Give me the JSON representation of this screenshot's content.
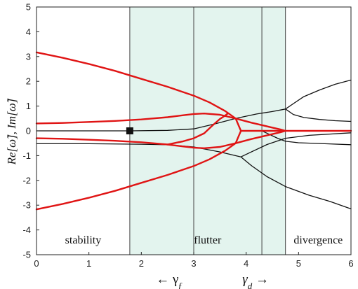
{
  "chart_data": {
    "type": "line",
    "xlim": [
      0,
      6
    ],
    "ylim": [
      -5,
      5
    ],
    "x_ticks": [
      0,
      1,
      2,
      3,
      4,
      5,
      6
    ],
    "y_ticks": [
      -5,
      -4,
      -3,
      -2,
      -1,
      0,
      1,
      2,
      3,
      4,
      5
    ],
    "ylabel": "Re[ω̃], Im[ω̃]",
    "x_annotations": [
      {
        "label": "← γf",
        "base": "← γ",
        "sub": "f"
      },
      {
        "label": "γd →",
        "base": "γ",
        "sub": "d",
        "suffix": " →"
      }
    ],
    "regions": [
      {
        "label": "stability",
        "x": [
          0,
          1.78
        ],
        "fill": "#ffffff"
      },
      {
        "label": "flutter",
        "x": [
          1.78,
          4.75
        ],
        "fill": "#e3f4ee"
      },
      {
        "label": "divergence",
        "x": [
          4.75,
          6
        ],
        "fill": "#ffffff"
      }
    ],
    "boundaries": [
      1.78,
      3.0,
      4.3,
      4.75
    ],
    "marker": {
      "x": 1.78,
      "y": 0,
      "shape": "square"
    },
    "colors": {
      "real_part": "#e01414",
      "imag_part": "#111111",
      "region_fill": "#e3f4ee"
    },
    "series": [
      {
        "part": "real",
        "color": "#e01414",
        "points": [
          [
            0,
            3.17
          ],
          [
            0.5,
            2.95
          ],
          [
            1.0,
            2.7
          ],
          [
            1.5,
            2.42
          ],
          [
            2.0,
            2.1
          ],
          [
            2.5,
            1.78
          ],
          [
            3.0,
            1.42
          ],
          [
            3.3,
            1.15
          ],
          [
            3.6,
            0.8
          ],
          [
            3.8,
            0.5
          ],
          [
            3.9,
            0.0
          ]
        ]
      },
      {
        "part": "real",
        "color": "#e01414",
        "points": [
          [
            0,
            -3.17
          ],
          [
            0.5,
            -2.95
          ],
          [
            1.0,
            -2.7
          ],
          [
            1.5,
            -2.42
          ],
          [
            2.0,
            -2.1
          ],
          [
            2.5,
            -1.78
          ],
          [
            3.0,
            -1.42
          ],
          [
            3.3,
            -1.15
          ],
          [
            3.6,
            -0.8
          ],
          [
            3.8,
            -0.5
          ],
          [
            3.9,
            0.0
          ]
        ]
      },
      {
        "part": "real",
        "color": "#e01414",
        "points": [
          [
            0,
            0.3
          ],
          [
            0.5,
            0.32
          ],
          [
            1.0,
            0.36
          ],
          [
            1.5,
            0.4
          ],
          [
            2.0,
            0.46
          ],
          [
            2.5,
            0.55
          ],
          [
            2.8,
            0.63
          ],
          [
            3.0,
            0.68
          ],
          [
            3.2,
            0.7
          ],
          [
            3.5,
            0.65
          ],
          [
            3.8,
            0.5
          ],
          [
            4.1,
            0.33
          ],
          [
            4.4,
            0.18
          ],
          [
            4.65,
            0.06
          ],
          [
            4.75,
            0.0
          ]
        ]
      },
      {
        "part": "real",
        "color": "#e01414",
        "points": [
          [
            0,
            -0.3
          ],
          [
            0.5,
            -0.32
          ],
          [
            1.0,
            -0.36
          ],
          [
            1.5,
            -0.4
          ],
          [
            2.0,
            -0.46
          ],
          [
            2.5,
            -0.55
          ],
          [
            2.8,
            -0.63
          ],
          [
            3.0,
            -0.68
          ],
          [
            3.2,
            -0.7
          ],
          [
            3.5,
            -0.65
          ],
          [
            3.8,
            -0.5
          ],
          [
            4.1,
            -0.33
          ],
          [
            4.4,
            -0.18
          ],
          [
            4.65,
            -0.06
          ],
          [
            4.75,
            0.0
          ]
        ]
      },
      {
        "part": "real",
        "color": "#e01414",
        "points": [
          [
            2.5,
            -0.55
          ],
          [
            2.8,
            -0.42
          ],
          [
            3.0,
            -0.3
          ],
          [
            3.2,
            -0.1
          ],
          [
            3.35,
            0.2
          ],
          [
            3.5,
            0.48
          ],
          [
            3.6,
            0.62
          ],
          [
            3.65,
            0.7
          ]
        ]
      },
      {
        "part": "real",
        "color": "#e01414",
        "points": [
          [
            3.9,
            0.0
          ],
          [
            4.3,
            0.0
          ],
          [
            4.75,
            0.0
          ],
          [
            5.0,
            0.0
          ],
          [
            5.5,
            0.0
          ],
          [
            6.0,
            0.0
          ]
        ]
      },
      {
        "part": "imag",
        "color": "#111111",
        "points": [
          [
            0,
            0.0
          ],
          [
            1.78,
            0.0
          ],
          [
            2.5,
            0.02
          ],
          [
            3.0,
            0.08
          ],
          [
            3.4,
            0.28
          ],
          [
            3.8,
            0.5
          ],
          [
            4.2,
            0.68
          ],
          [
            4.5,
            0.78
          ],
          [
            4.75,
            0.88
          ]
        ]
      },
      {
        "part": "imag",
        "color": "#111111",
        "points": [
          [
            0,
            -0.52
          ],
          [
            1.0,
            -0.52
          ],
          [
            2.0,
            -0.54
          ],
          [
            2.5,
            -0.56
          ],
          [
            3.0,
            -0.65
          ],
          [
            3.5,
            -0.85
          ],
          [
            3.9,
            -1.05
          ],
          [
            4.1,
            -0.85
          ],
          [
            4.4,
            -0.55
          ],
          [
            4.75,
            -0.3
          ],
          [
            5.2,
            -0.18
          ],
          [
            6.0,
            -0.08
          ]
        ]
      },
      {
        "part": "imag",
        "color": "#111111",
        "points": [
          [
            3.9,
            -1.05
          ],
          [
            4.1,
            -1.4
          ],
          [
            4.4,
            -1.85
          ],
          [
            4.75,
            -2.25
          ],
          [
            5.2,
            -2.6
          ],
          [
            5.6,
            -2.85
          ],
          [
            6.0,
            -3.15
          ]
        ]
      },
      {
        "part": "imag",
        "color": "#111111",
        "points": [
          [
            4.75,
            0.88
          ],
          [
            4.9,
            1.1
          ],
          [
            5.1,
            1.38
          ],
          [
            5.4,
            1.65
          ],
          [
            5.7,
            1.88
          ],
          [
            6.0,
            2.05
          ]
        ]
      },
      {
        "part": "imag",
        "color": "#111111",
        "points": [
          [
            4.75,
            0.88
          ],
          [
            4.9,
            0.66
          ],
          [
            5.1,
            0.54
          ],
          [
            5.4,
            0.46
          ],
          [
            5.7,
            0.41
          ],
          [
            6.0,
            0.38
          ]
        ]
      },
      {
        "part": "imag",
        "color": "#111111",
        "points": [
          [
            4.3,
            0.0
          ],
          [
            4.6,
            -0.3
          ],
          [
            4.75,
            -0.42
          ],
          [
            5.0,
            -0.48
          ],
          [
            5.5,
            -0.52
          ],
          [
            6.0,
            -0.56
          ]
        ]
      }
    ]
  }
}
